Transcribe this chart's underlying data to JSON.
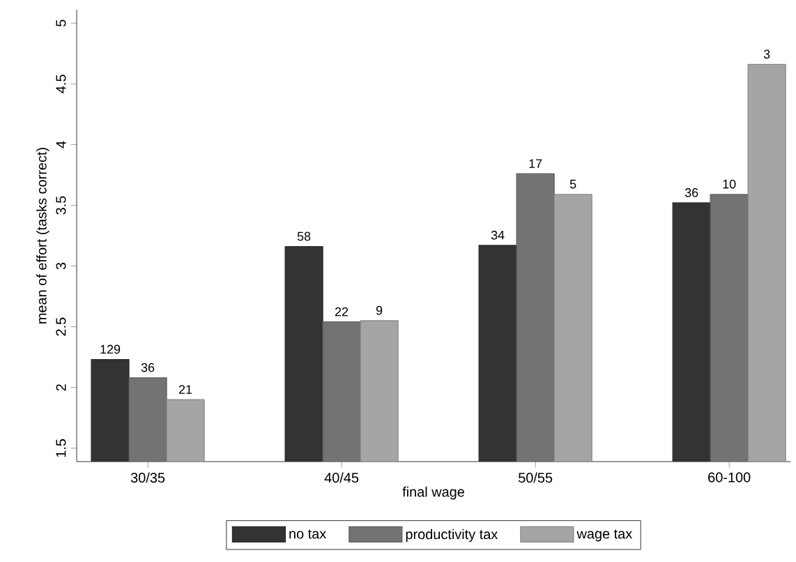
{
  "chart_data": {
    "type": "bar",
    "xlabel": "final wage",
    "ylabel": "mean of effort (tasks correct)",
    "categories": [
      "30/35",
      "40/45",
      "50/55",
      "60-100"
    ],
    "series": [
      {
        "name": "no tax",
        "color": "#333333",
        "values": [
          2.23,
          3.16,
          3.17,
          3.52
        ]
      },
      {
        "name": "productivity tax",
        "color": "#737373",
        "values": [
          2.08,
          2.54,
          3.76,
          3.59
        ]
      },
      {
        "name": "wage tax",
        "color": "#a5a5a5",
        "values": [
          1.9,
          2.55,
          3.59,
          4.66
        ]
      }
    ],
    "annotations": [
      "129",
      "36",
      "21",
      "58",
      "22",
      "9",
      "34",
      "17",
      "5",
      "36",
      "10",
      "3"
    ],
    "ylim": [
      1.39,
      5.11
    ],
    "yticks": [
      1.5,
      2,
      2.5,
      3,
      3.5,
      4,
      4.5,
      5
    ],
    "grid": false,
    "legend": "bottom"
  }
}
